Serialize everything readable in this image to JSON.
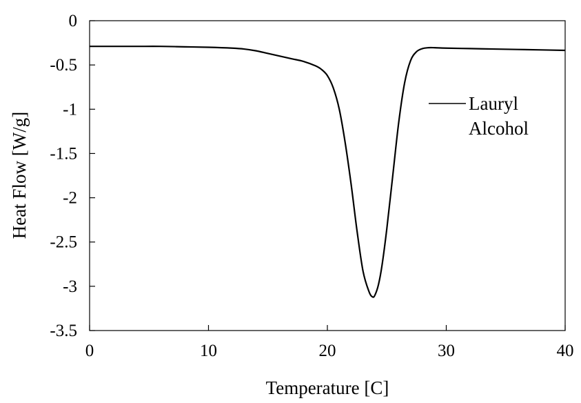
{
  "chart_data": {
    "type": "line",
    "title": "",
    "xlabel": "Temperature [C]",
    "ylabel": "Heat Flow [W/g]",
    "xlim": [
      0,
      40
    ],
    "ylim": [
      -3.5,
      0
    ],
    "x_ticks": [
      0,
      10,
      20,
      30,
      40
    ],
    "x_tick_labels": [
      "0",
      "10",
      "20",
      "30",
      "40"
    ],
    "y_ticks": [
      0,
      -0.5,
      -1,
      -1.5,
      -2,
      -2.5,
      -3,
      -3.5
    ],
    "y_tick_labels": [
      "0",
      "-0.5",
      "-1",
      "-1.5",
      "-2",
      "-2.5",
      "-3",
      "-3.5"
    ],
    "grid": false,
    "legend_position": "right",
    "series": [
      {
        "name": "Lauryl Alcohol",
        "legend_lines": [
          "Lauryl",
          "Alcohol"
        ],
        "color": "#000000",
        "x": [
          0,
          2,
          4,
          6,
          8,
          10,
          12,
          13,
          14,
          15,
          16,
          17,
          18,
          19,
          19.5,
          20,
          20.5,
          21,
          21.5,
          22,
          22.5,
          23,
          23.5,
          23.8,
          24,
          24.3,
          24.6,
          25,
          25.5,
          26,
          26.5,
          27,
          27.5,
          28,
          28.5,
          29,
          30,
          32,
          34,
          36,
          38,
          40
        ],
        "y": [
          -0.29,
          -0.29,
          -0.29,
          -0.29,
          -0.295,
          -0.3,
          -0.31,
          -0.32,
          -0.34,
          -0.37,
          -0.4,
          -0.43,
          -0.46,
          -0.51,
          -0.55,
          -0.62,
          -0.76,
          -1.0,
          -1.38,
          -1.85,
          -2.38,
          -2.83,
          -3.06,
          -3.12,
          -3.1,
          -2.98,
          -2.76,
          -2.35,
          -1.75,
          -1.15,
          -0.7,
          -0.45,
          -0.35,
          -0.315,
          -0.305,
          -0.305,
          -0.31,
          -0.315,
          -0.32,
          -0.325,
          -0.33,
          -0.335
        ]
      }
    ]
  }
}
